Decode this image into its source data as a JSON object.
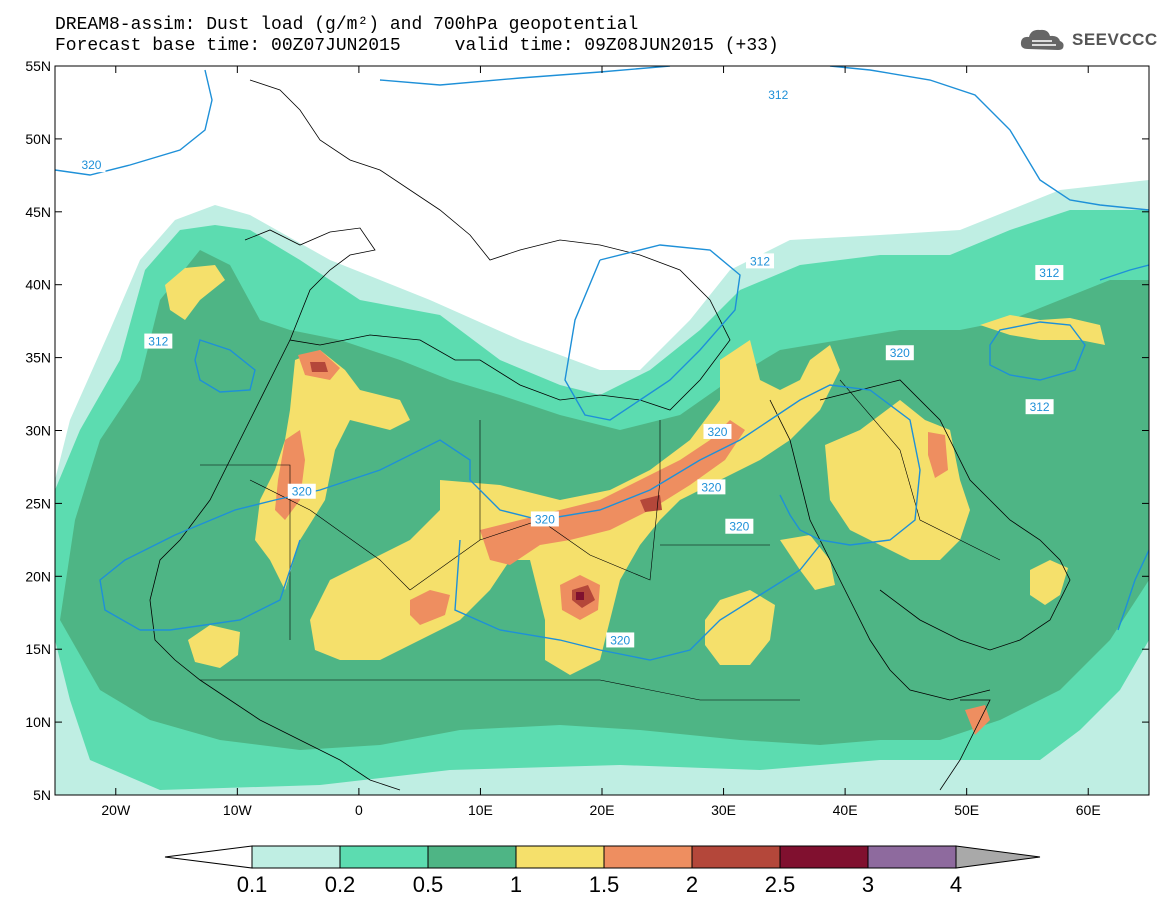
{
  "header": {
    "line1": "DREAM8-assim: Dust load (g/m²) and 700hPa geopotential",
    "line2_left": "Forecast base time: 00Z07JUN2015",
    "line2_right": "valid time: 09Z08JUN2015 (+33)"
  },
  "logo": {
    "text": "SEEVCCC",
    "icon": "cloud-logo-icon"
  },
  "map": {
    "projection": "lat-lon",
    "lon_range": [
      -25,
      65
    ],
    "lat_range": [
      5,
      55
    ],
    "lat_ticks": [
      "55N",
      "50N",
      "45N",
      "40N",
      "35N",
      "30N",
      "25N",
      "20N",
      "15N",
      "10N",
      "5N"
    ],
    "lon_ticks": [
      "20W",
      "10W",
      "0",
      "10E",
      "20E",
      "30E",
      "40E",
      "50E",
      "60E"
    ],
    "contour_color": "#1e90d8",
    "contour_labels": [
      {
        "text": "312",
        "lon": -16.5,
        "lat": 36.1
      },
      {
        "text": "312",
        "lon": 33,
        "lat": 41.6
      },
      {
        "text": "312",
        "lon": 34.5,
        "lat": 53
      },
      {
        "text": "312",
        "lon": 56,
        "lat": 31.6
      },
      {
        "text": "320",
        "lon": -22,
        "lat": 48.2
      },
      {
        "text": "320",
        "lon": -4.7,
        "lat": 25.8
      },
      {
        "text": "320",
        "lon": 15.3,
        "lat": 23.9
      },
      {
        "text": "320",
        "lon": 21.5,
        "lat": 15.6
      },
      {
        "text": "320",
        "lon": 29.5,
        "lat": 29.9
      },
      {
        "text": "320",
        "lon": 29,
        "lat": 26.1
      },
      {
        "text": "320",
        "lon": 31.3,
        "lat": 23.4
      },
      {
        "text": "320",
        "lon": 44.5,
        "lat": 35.3
      },
      {
        "text": "312",
        "lon": 56.8,
        "lat": 40.8
      }
    ],
    "dust_colors": {
      "0.1-0.2": "#bfeee3",
      "0.2-0.5": "#5cdcb0",
      "0.5-1": "#4eb585",
      "1-1.5": "#f5e06b",
      "1.5-2": "#ee8e60",
      "2-2.5": "#b4473a",
      "2.5-3": "#80102f"
    }
  },
  "colorbar": {
    "labels": [
      "0.1",
      "0.2",
      "0.5",
      "1",
      "1.5",
      "2",
      "2.5",
      "3",
      "4"
    ],
    "colors": [
      "#bfeee3",
      "#5cdcb0",
      "#4eb585",
      "#f5e06b",
      "#ee8e60",
      "#b4473a",
      "#80102f",
      "#8e6a9e",
      "#a9a9a9"
    ],
    "low_end_color": "#ffffff"
  }
}
